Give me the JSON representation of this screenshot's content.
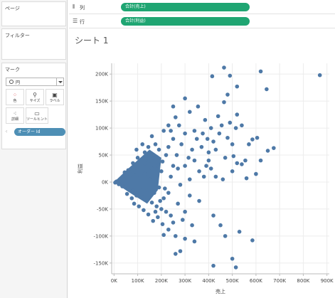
{
  "left_pane": {
    "pages_title": "ページ",
    "filters_title": "フィルター",
    "marks_title": "マーク",
    "mark_type": "円",
    "buttons": {
      "color": "色",
      "size": "サイズ",
      "label": "ラベル",
      "detail": "詳細",
      "tooltip": "ツールヒント"
    },
    "detail_pill": "オーダー Id"
  },
  "shelves": {
    "columns_label": "列",
    "columns_pill": "合計(売上)",
    "rows_label": "行",
    "rows_pill": "合計(利益)"
  },
  "sheet": {
    "title": "シート 1"
  },
  "colors": {
    "mark": "#4e79a7",
    "shelf_pill": "#1fa572",
    "detail_pill": "#4e8fb5"
  },
  "chart_data": {
    "type": "scatter",
    "xlabel": "売上",
    "ylabel": "利益",
    "xlim": [
      -10000,
      910000
    ],
    "ylim": [
      -170000,
      220000
    ],
    "xticks": [
      "0K",
      "100K",
      "200K",
      "300K",
      "400K",
      "500K",
      "600K",
      "700K",
      "800K",
      "900K"
    ],
    "yticks": [
      "200K",
      "150K",
      "100K",
      "50K",
      "0K",
      "-50K",
      "-100K",
      "-150K"
    ],
    "xtick_values": [
      0,
      100000,
      200000,
      300000,
      400000,
      500000,
      600000,
      700000,
      800000,
      900000
    ],
    "ytick_values": [
      200000,
      150000,
      100000,
      50000,
      0,
      -50000,
      -100000,
      -150000
    ],
    "grid": true,
    "points": [
      [
        870000,
        198000
      ],
      [
        620000,
        205000
      ],
      [
        645000,
        172000
      ],
      [
        465000,
        212000
      ],
      [
        490000,
        197000
      ],
      [
        415000,
        196000
      ],
      [
        520000,
        177000
      ],
      [
        675000,
        63000
      ],
      [
        605000,
        82000
      ],
      [
        585000,
        79000
      ],
      [
        570000,
        70000
      ],
      [
        555000,
        40000
      ],
      [
        540000,
        33000
      ],
      [
        520000,
        35000
      ],
      [
        505000,
        48000
      ],
      [
        470000,
        45000
      ],
      [
        440000,
        122000
      ],
      [
        465000,
        148000
      ],
      [
        480000,
        162000
      ],
      [
        520000,
        125000
      ],
      [
        540000,
        105000
      ],
      [
        515000,
        100000
      ],
      [
        490000,
        110000
      ],
      [
        455000,
        105000
      ],
      [
        410000,
        100000
      ],
      [
        385000,
        115000
      ],
      [
        395000,
        80000
      ],
      [
        420000,
        75000
      ],
      [
        445000,
        90000
      ],
      [
        480000,
        82000
      ],
      [
        500000,
        70000
      ],
      [
        430000,
        60000
      ],
      [
        400000,
        55000
      ],
      [
        370000,
        65000
      ],
      [
        340000,
        95000
      ],
      [
        320000,
        130000
      ],
      [
        300000,
        155000
      ],
      [
        355000,
        140000
      ],
      [
        340000,
        40000
      ],
      [
        300000,
        30000
      ],
      [
        270000,
        25000
      ],
      [
        260000,
        120000
      ],
      [
        230000,
        105000
      ],
      [
        210000,
        95000
      ],
      [
        250000,
        80000
      ],
      [
        285000,
        70000
      ],
      [
        315000,
        45000
      ],
      [
        220000,
        50000
      ],
      [
        190000,
        60000
      ],
      [
        175000,
        70000
      ],
      [
        165000,
        45000
      ],
      [
        150000,
        40000
      ],
      [
        130000,
        35000
      ],
      [
        110000,
        28000
      ],
      [
        90000,
        20000
      ],
      [
        70000,
        14000
      ],
      [
        55000,
        10000
      ],
      [
        40000,
        6000
      ],
      [
        25000,
        3000
      ],
      [
        10000,
        1000
      ],
      [
        5000,
        -1000
      ],
      [
        20000,
        -4000
      ],
      [
        35000,
        -8000
      ],
      [
        60000,
        -12000
      ],
      [
        80000,
        -16000
      ],
      [
        100000,
        -20000
      ],
      [
        120000,
        -28000
      ],
      [
        140000,
        -33000
      ],
      [
        160000,
        -38000
      ],
      [
        180000,
        -45000
      ],
      [
        200000,
        -50000
      ],
      [
        220000,
        -55000
      ],
      [
        240000,
        -62000
      ],
      [
        250000,
        -75000
      ],
      [
        230000,
        -88000
      ],
      [
        210000,
        -98000
      ],
      [
        260000,
        -100000
      ],
      [
        290000,
        -70000
      ],
      [
        330000,
        -80000
      ],
      [
        300000,
        -105000
      ],
      [
        340000,
        -110000
      ],
      [
        420000,
        -62000
      ],
      [
        450000,
        -80000
      ],
      [
        470000,
        -100000
      ],
      [
        530000,
        -92000
      ],
      [
        585000,
        -108000
      ],
      [
        500000,
        -142000
      ],
      [
        515000,
        -158000
      ],
      [
        420000,
        -155000
      ],
      [
        260000,
        -133000
      ],
      [
        280000,
        -128000
      ],
      [
        190000,
        -10000
      ],
      [
        170000,
        -20000
      ],
      [
        150000,
        5000
      ],
      [
        200000,
        20000
      ],
      [
        240000,
        10000
      ],
      [
        280000,
        -5000
      ],
      [
        320000,
        5000
      ],
      [
        360000,
        20000
      ],
      [
        390000,
        30000
      ],
      [
        130000,
        55000
      ],
      [
        100000,
        45000
      ],
      [
        80000,
        35000
      ],
      [
        60000,
        22000
      ],
      [
        45000,
        18000
      ],
      [
        120000,
        -8000
      ],
      [
        140000,
        -15000
      ],
      [
        95000,
        -25000
      ],
      [
        75000,
        -30000
      ],
      [
        55000,
        -22000
      ],
      [
        110000,
        12000
      ],
      [
        130000,
        15000
      ],
      [
        160000,
        25000
      ],
      [
        185000,
        30000
      ],
      [
        205000,
        38000
      ],
      [
        230000,
        65000
      ],
      [
        265000,
        50000
      ],
      [
        210000,
        -30000
      ],
      [
        230000,
        -20000
      ],
      [
        270000,
        -40000
      ],
      [
        300000,
        -55000
      ],
      [
        320000,
        -25000
      ],
      [
        360000,
        -35000
      ],
      [
        380000,
        10000
      ],
      [
        410000,
        25000
      ],
      [
        560000,
        7000
      ],
      [
        600000,
        15000
      ],
      [
        620000,
        40000
      ],
      [
        650000,
        58000
      ],
      [
        300000,
        90000
      ],
      [
        275000,
        105000
      ],
      [
        250000,
        140000
      ],
      [
        240000,
        95000
      ],
      [
        160000,
        85000
      ],
      [
        145000,
        65000
      ],
      [
        120000,
        70000
      ],
      [
        95000,
        60000
      ],
      [
        85000,
        -40000
      ],
      [
        105000,
        -45000
      ],
      [
        125000,
        -52000
      ],
      [
        145000,
        -60000
      ],
      [
        165000,
        -72000
      ],
      [
        185000,
        -65000
      ],
      [
        205000,
        -78000
      ],
      [
        175000,
        -55000
      ],
      [
        195000,
        -35000
      ],
      [
        215000,
        -12000
      ],
      [
        250000,
        30000
      ],
      [
        330000,
        60000
      ],
      [
        350000,
        80000
      ],
      [
        375000,
        90000
      ],
      [
        400000,
        40000
      ],
      [
        430000,
        10000
      ],
      [
        460000,
        5000
      ],
      [
        500000,
        20000
      ]
    ]
  }
}
